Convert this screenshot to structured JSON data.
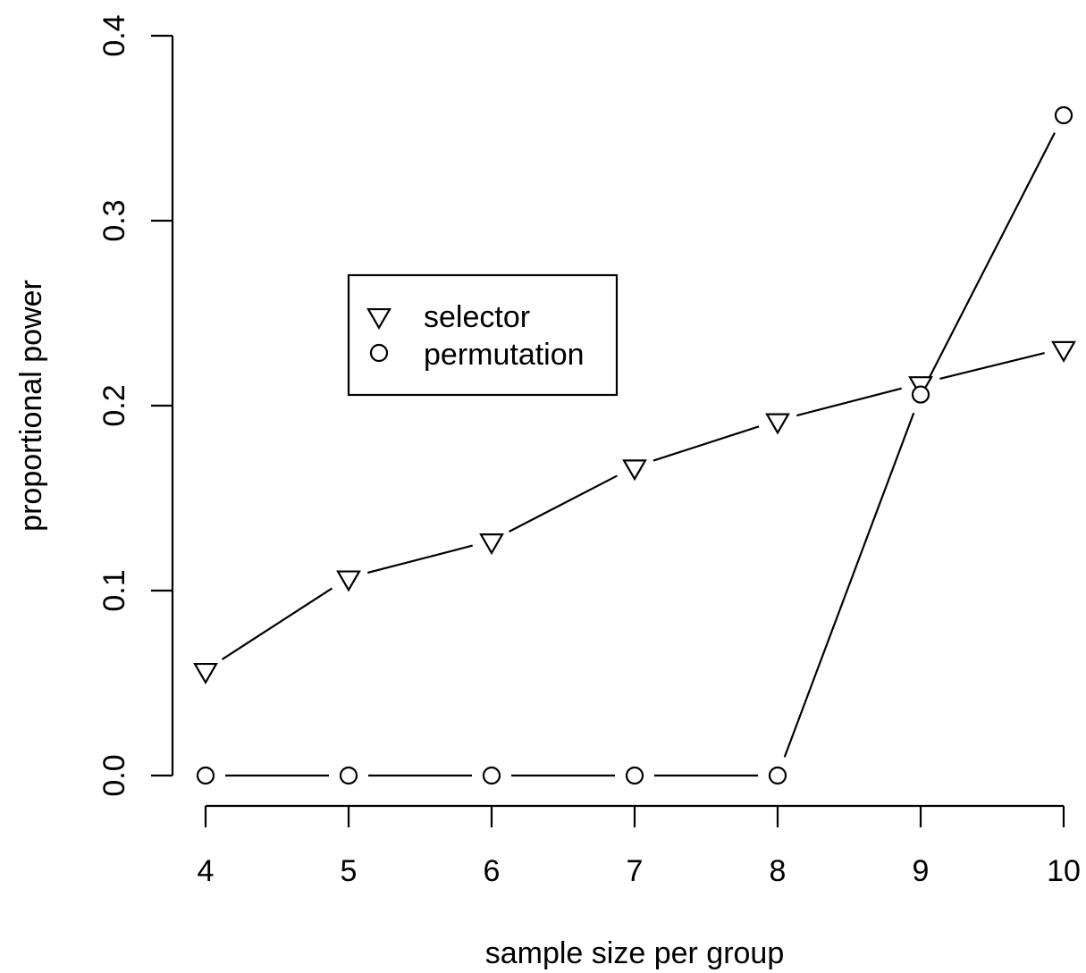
{
  "chart_data": {
    "type": "line",
    "title": "",
    "xlabel": "sample size per group",
    "ylabel": "proportional power",
    "x": [
      4,
      5,
      6,
      7,
      8,
      9,
      10
    ],
    "xlim": [
      4,
      10
    ],
    "ylim": [
      0,
      0.4
    ],
    "x_ticks": [
      "4",
      "5",
      "6",
      "7",
      "8",
      "9",
      "10"
    ],
    "y_ticks": [
      "0.0",
      "0.1",
      "0.2",
      "0.3",
      "0.4"
    ],
    "grid": false,
    "legend_position": "center-left",
    "series": [
      {
        "name": "selector",
        "marker": "triangle-down",
        "values": [
          0.057,
          0.107,
          0.127,
          0.167,
          0.192,
          0.212,
          0.231
        ]
      },
      {
        "name": "permutation",
        "marker": "circle",
        "values": [
          0.0,
          0.0,
          0.0,
          0.0,
          0.0,
          0.206,
          0.357
        ]
      }
    ]
  }
}
